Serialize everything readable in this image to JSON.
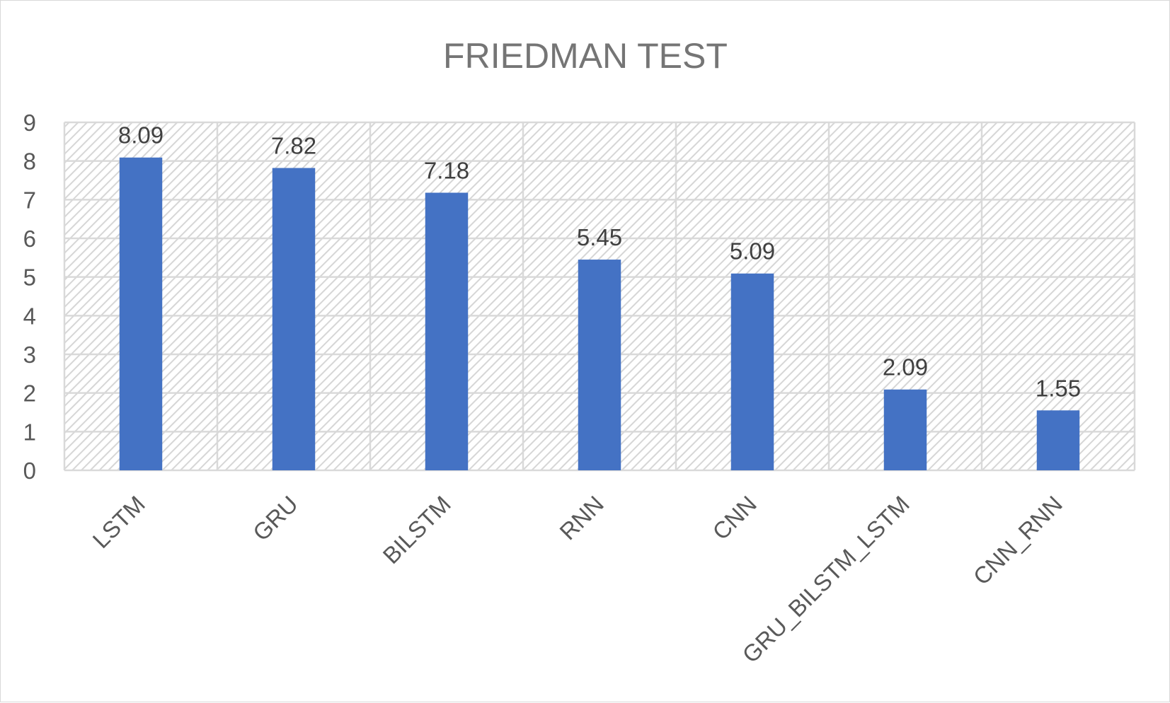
{
  "chart_data": {
    "type": "bar",
    "title": "FRIEDMAN TEST",
    "xlabel": "",
    "ylabel": "",
    "categories": [
      "LSTM",
      "GRU",
      "BILSTM",
      "RNN",
      "CNN",
      "GRU_BILSTM_LSTM",
      "CNN_RNN"
    ],
    "series": [
      {
        "values": [
          8.09,
          7.82,
          7.18,
          5.45,
          5.09,
          2.09,
          1.55
        ],
        "data_labels": [
          "8.09",
          "7.82",
          "7.18",
          "5.45",
          "5.09",
          "2.09",
          "1.55"
        ],
        "color": "#4472c4"
      }
    ],
    "ylim": [
      0,
      9
    ],
    "yticks": [
      0,
      1,
      2,
      3,
      4,
      5,
      6,
      7,
      8,
      9
    ],
    "grid": true,
    "legend": "none",
    "plot_background": "hatched light gray"
  }
}
